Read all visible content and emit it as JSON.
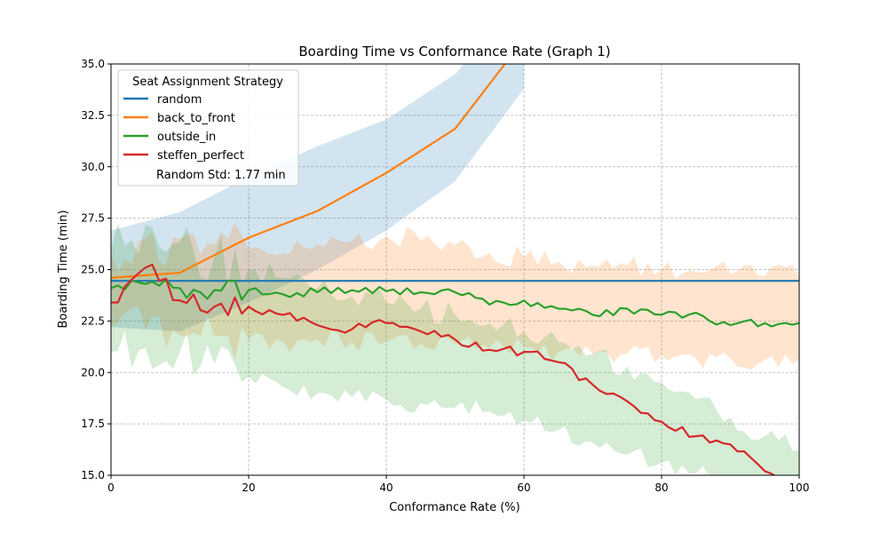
{
  "chart_data": {
    "type": "line",
    "title": "Boarding Time vs Conformance Rate (Graph 1)",
    "xlabel": "Conformance Rate (%)",
    "ylabel": "Boarding Time (min)",
    "xlim": [
      0,
      100
    ],
    "ylim": [
      15,
      35
    ],
    "x_ticks": [
      "0",
      "20",
      "40",
      "60",
      "80",
      "100"
    ],
    "y_ticks": [
      "15.0",
      "17.5",
      "20.0",
      "22.5",
      "25.0",
      "27.5",
      "30.0",
      "32.5",
      "35.0"
    ],
    "grid": true,
    "legend_position": "top-left",
    "legend_title": "Seat Assignment Strategy",
    "legend_note": "Random Std: 1.77 min",
    "series": [
      {
        "name": "random",
        "color": "#1f77b4",
        "x": [
          0,
          100
        ],
        "y": [
          24.45,
          24.45
        ]
      },
      {
        "name": "back_to_front",
        "color": "#ff7f0e",
        "x": [
          0,
          10,
          20,
          30,
          40,
          50,
          60
        ],
        "y": [
          24.6,
          24.85,
          26.55,
          27.85,
          29.7,
          31.85,
          36.2
        ],
        "band_color": "#1f77b4",
        "band_upper": [
          26.9,
          27.8,
          29.5,
          31.0,
          32.3,
          34.5,
          38.5
        ],
        "band_lower": [
          22.2,
          22.0,
          23.4,
          25.0,
          26.9,
          29.3,
          33.8
        ]
      },
      {
        "name": "outside_in",
        "color": "#2ca02c",
        "x": [
          0,
          5,
          10,
          15,
          20,
          25,
          30,
          35,
          40,
          45,
          50,
          55,
          60,
          65,
          70,
          75,
          80,
          85,
          90,
          95,
          100
        ],
        "y": [
          24.1,
          24.3,
          24.1,
          24.0,
          24.0,
          23.8,
          23.9,
          24.0,
          23.95,
          23.9,
          23.9,
          23.3,
          23.5,
          23.1,
          22.8,
          23.1,
          22.8,
          22.9,
          22.3,
          22.4,
          22.4
        ],
        "band_color": "#ff7f0e",
        "band_upper": [
          25.8,
          26.5,
          26.5,
          26.2,
          26.0,
          25.8,
          26.2,
          26.4,
          26.6,
          26.4,
          26.2,
          25.8,
          25.6,
          25.4,
          25.2,
          25.2,
          25.0,
          24.9,
          24.8,
          24.7,
          24.6
        ],
        "band_lower": [
          22.2,
          22.1,
          21.8,
          21.8,
          21.6,
          21.5,
          21.6,
          21.5,
          21.5,
          21.4,
          21.4,
          21.2,
          21.2,
          21.0,
          20.9,
          20.9,
          20.8,
          20.7,
          20.7,
          20.6,
          20.6
        ]
      },
      {
        "name": "steffen_perfect",
        "color": "#d62728",
        "x": [
          0,
          5,
          10,
          15,
          20,
          25,
          30,
          35,
          40,
          45,
          50,
          55,
          60,
          65,
          70,
          75,
          80,
          85,
          90,
          95,
          100
        ],
        "y": [
          23.4,
          25.1,
          23.5,
          23.2,
          23.2,
          22.8,
          22.3,
          22.1,
          22.4,
          22.0,
          21.6,
          21.1,
          21.0,
          20.5,
          19.4,
          18.6,
          17.6,
          16.9,
          16.5,
          15.2,
          14.5
        ],
        "band_color": "#2ca02c",
        "band_upper": [
          26.0,
          27.2,
          26.3,
          25.6,
          25.0,
          24.6,
          24.1,
          23.7,
          23.4,
          23.1,
          22.8,
          22.4,
          22.0,
          21.5,
          20.9,
          20.3,
          19.5,
          18.7,
          17.8,
          16.9,
          16.2
        ],
        "band_lower": [
          21.0,
          21.2,
          21.0,
          20.4,
          19.8,
          19.3,
          19.0,
          18.8,
          18.7,
          18.5,
          18.3,
          18.1,
          17.7,
          17.2,
          16.6,
          16.0,
          15.6,
          15.1,
          14.6,
          14.2,
          13.8
        ]
      }
    ]
  }
}
